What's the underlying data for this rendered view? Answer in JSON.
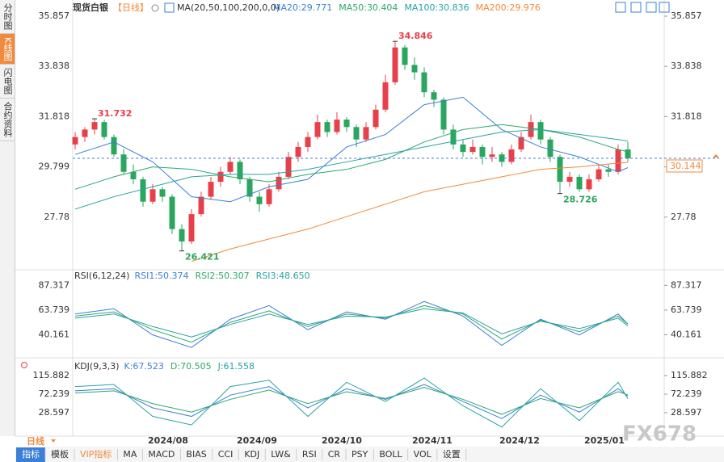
{
  "sidebar": [
    "分时图",
    "K线图",
    "闪电图",
    "合约资料"
  ],
  "header": {
    "title": "现货白银",
    "period": "【日线】",
    "ma_def": "MA(20,50,100,200,0,0)"
  },
  "chart_data": {
    "type": "candlestick",
    "candles": [
      [
        30.7,
        31.2,
        30.5,
        31.0
      ],
      [
        31.0,
        31.4,
        30.8,
        31.3
      ],
      [
        31.3,
        31.732,
        31.1,
        31.6
      ],
      [
        31.6,
        31.7,
        30.9,
        31.0
      ],
      [
        31.0,
        31.1,
        30.2,
        30.3
      ],
      [
        30.3,
        30.5,
        29.5,
        29.6
      ],
      [
        29.6,
        29.9,
        29.1,
        29.3
      ],
      [
        29.3,
        29.4,
        28.2,
        28.4
      ],
      [
        28.4,
        29.1,
        28.3,
        28.9
      ],
      [
        28.9,
        29.0,
        28.4,
        28.6
      ],
      [
        28.6,
        28.7,
        27.1,
        27.3
      ],
      [
        27.3,
        27.5,
        26.421,
        26.8
      ],
      [
        26.8,
        28.1,
        26.7,
        27.9
      ],
      [
        27.9,
        28.8,
        27.8,
        28.6
      ],
      [
        28.6,
        29.4,
        28.5,
        29.2
      ],
      [
        29.2,
        29.8,
        29.0,
        29.6
      ],
      [
        29.6,
        30.2,
        29.5,
        30.0
      ],
      [
        30.0,
        30.1,
        29.1,
        29.3
      ],
      [
        29.3,
        29.4,
        28.4,
        28.6
      ],
      [
        28.6,
        28.8,
        28.0,
        28.3
      ],
      [
        28.3,
        29.1,
        28.2,
        28.9
      ],
      [
        28.9,
        29.6,
        28.8,
        29.4
      ],
      [
        29.4,
        30.4,
        29.3,
        30.2
      ],
      [
        30.2,
        30.8,
        30.0,
        30.6
      ],
      [
        30.6,
        31.2,
        30.4,
        31.0
      ],
      [
        31.0,
        31.9,
        30.9,
        31.6
      ],
      [
        31.6,
        31.7,
        31.0,
        31.2
      ],
      [
        31.2,
        32.0,
        31.1,
        31.7
      ],
      [
        31.7,
        31.8,
        31.2,
        31.4
      ],
      [
        31.4,
        31.5,
        30.6,
        30.9
      ],
      [
        30.9,
        31.6,
        30.8,
        31.4
      ],
      [
        31.4,
        32.3,
        31.3,
        32.1
      ],
      [
        32.1,
        33.5,
        32.0,
        33.2
      ],
      [
        33.2,
        34.846,
        33.1,
        34.6
      ],
      [
        34.6,
        34.7,
        33.7,
        33.9
      ],
      [
        33.9,
        34.2,
        33.3,
        33.6
      ],
      [
        33.6,
        33.8,
        32.6,
        32.8
      ],
      [
        32.8,
        32.9,
        32.2,
        32.5
      ],
      [
        32.5,
        32.6,
        31.1,
        31.3
      ],
      [
        31.3,
        31.5,
        30.5,
        30.7
      ],
      [
        30.7,
        30.9,
        30.2,
        30.4
      ],
      [
        30.4,
        30.9,
        30.3,
        30.6
      ],
      [
        30.6,
        30.7,
        29.9,
        30.2
      ],
      [
        30.2,
        30.6,
        30.0,
        30.3
      ],
      [
        30.3,
        30.4,
        29.8,
        30.0
      ],
      [
        30.0,
        30.7,
        29.9,
        30.5
      ],
      [
        30.5,
        31.2,
        30.4,
        31.0
      ],
      [
        31.0,
        31.9,
        30.9,
        31.6
      ],
      [
        31.6,
        31.7,
        30.7,
        30.9
      ],
      [
        30.9,
        31.0,
        30.0,
        30.2
      ],
      [
        30.2,
        30.3,
        28.726,
        29.2
      ],
      [
        29.2,
        29.6,
        29.0,
        29.4
      ],
      [
        29.4,
        29.5,
        28.8,
        28.9
      ],
      [
        28.9,
        29.5,
        28.8,
        29.3
      ],
      [
        29.3,
        29.9,
        29.2,
        29.7
      ],
      [
        29.7,
        29.9,
        29.4,
        29.6
      ],
      [
        29.6,
        30.7,
        29.5,
        30.5
      ],
      [
        30.5,
        30.8,
        30.0,
        30.144
      ]
    ],
    "up_color": "#e8404a",
    "down_color": "#2aa65e",
    "ylim": [
      25.696,
      36.248
    ],
    "yticks": [
      35.857,
      33.838,
      31.818,
      29.799,
      27.78
    ],
    "last": 30.144,
    "last_label": "30.144",
    "annotations": [
      {
        "value": 31.732,
        "color": "#e8404a"
      },
      {
        "value": 34.846,
        "color": "#e8404a"
      },
      {
        "value": 26.421,
        "color": "#2aa65e"
      },
      {
        "value": 28.726,
        "color": "#2aa65e"
      }
    ],
    "xticks": [
      "2024/08",
      "2024/09",
      "2024/10",
      "2024/11",
      "2024/12",
      "2025/01"
    ],
    "series": [
      {
        "name": "MA20:29.771",
        "color": "#3b7fd6",
        "values": [
          30.3,
          30.8,
          30.0,
          28.6,
          28.4,
          29.0,
          29.3,
          30.6,
          31.1,
          32.3,
          32.6,
          31.3,
          30.6,
          30.2,
          29.6,
          29.771
        ]
      },
      {
        "name": "MA50:30.404",
        "color": "#2ca86b",
        "values": [
          28.9,
          29.4,
          29.8,
          29.7,
          29.4,
          29.2,
          29.5,
          29.7,
          30.1,
          30.8,
          31.3,
          31.5,
          31.3,
          31.0,
          30.5,
          30.404
        ]
      },
      {
        "name": "MA100:30.836",
        "color": "#29a3a3",
        "values": [
          28.1,
          28.6,
          29.0,
          29.4,
          29.5,
          29.5,
          29.7,
          30.0,
          30.3,
          30.6,
          30.9,
          31.2,
          31.3,
          31.1,
          30.9,
          30.836
        ]
      },
      {
        "name": "MA200:29.976",
        "color": "#f08a3c",
        "values": [
          null,
          null,
          null,
          26.0,
          26.5,
          26.9,
          27.3,
          27.8,
          28.3,
          28.8,
          29.1,
          29.4,
          29.7,
          29.8,
          29.95,
          29.976
        ]
      }
    ]
  },
  "rsi": {
    "title": "RSI(6,12,24)",
    "ylim": [
      18.9,
      100.7
    ],
    "yticks": [
      87.317,
      63.739,
      40.161
    ],
    "series": [
      {
        "name": "RSI1:50.374",
        "color": "#3b7fd6",
        "values": [
          60,
          65,
          40,
          28,
          55,
          68,
          45,
          62,
          55,
          72,
          58,
          30,
          55,
          40,
          60,
          50.374
        ]
      },
      {
        "name": "RSI2:50.307",
        "color": "#2ca86b",
        "values": [
          58,
          62,
          45,
          33,
          52,
          63,
          48,
          60,
          56,
          68,
          60,
          36,
          54,
          43,
          58,
          50.307
        ]
      },
      {
        "name": "RSI3:48.650",
        "color": "#29a3a3",
        "values": [
          56,
          60,
          48,
          38,
          50,
          60,
          50,
          58,
          57,
          65,
          61,
          41,
          53,
          46,
          56,
          48.65
        ]
      }
    ]
  },
  "kdj": {
    "title": "KDJ(9,3,3)",
    "ylim": [
      -26.4,
      153.8
    ],
    "yticks": [
      115.882,
      72.239,
      28.597
    ],
    "series": [
      {
        "name": "K:67.523",
        "color": "#3b7fd6",
        "values": [
          80,
          85,
          40,
          20,
          70,
          90,
          40,
          85,
          60,
          95,
          55,
          15,
          70,
          30,
          85,
          67.523
        ]
      },
      {
        "name": "D:70.505",
        "color": "#2ca86b",
        "values": [
          75,
          80,
          50,
          30,
          60,
          82,
          50,
          78,
          62,
          88,
          60,
          25,
          62,
          40,
          78,
          70.505
        ]
      },
      {
        "name": "J:61.558",
        "color": "#29a3a3",
        "values": [
          90,
          95,
          20,
          0,
          90,
          105,
          20,
          100,
          55,
          110,
          45,
          -5,
          85,
          10,
          100,
          61.558
        ]
      }
    ]
  },
  "period_select": "日线",
  "toolbar": [
    "指标",
    "模板",
    "VIP指标",
    "MA",
    "MACD",
    "BIAS",
    "CCI",
    "KDJ",
    "LW&",
    "RSI",
    "CR",
    "PSY",
    "BOLL",
    "VOL",
    "设置"
  ],
  "watermark": "FX678"
}
